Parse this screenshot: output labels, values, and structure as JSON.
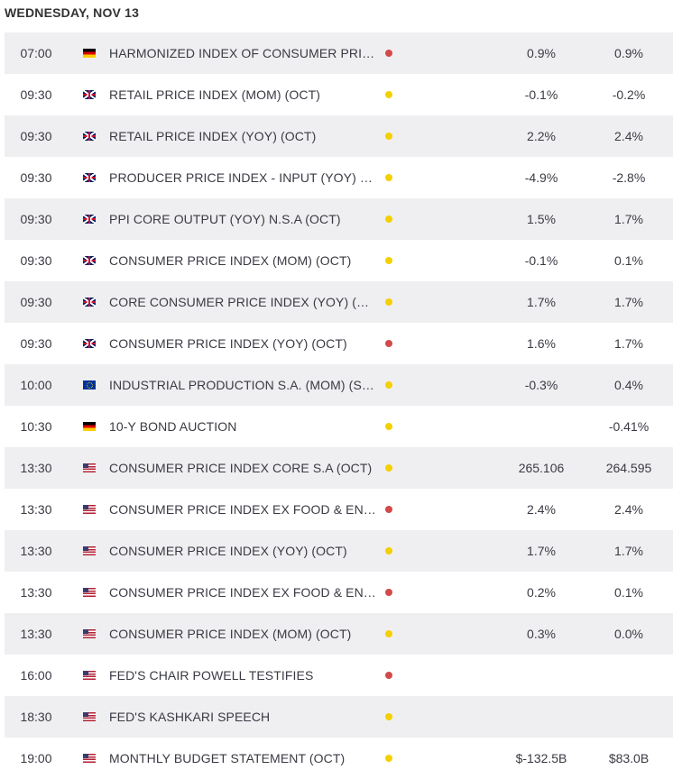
{
  "date_header": "WEDNESDAY, NOV 13",
  "importance_colors": {
    "high": "#d24a4a",
    "medium": "#f5d000"
  },
  "events": [
    {
      "time": "07:00",
      "country": "de",
      "event": "HARMONIZED INDEX OF CONSUMER PRICES (MOM) (OCT)",
      "importance": "high",
      "v1": "0.9%",
      "v2": "0.9%"
    },
    {
      "time": "09:30",
      "country": "uk",
      "event": "RETAIL PRICE INDEX (MOM) (OCT)",
      "importance": "medium",
      "v1": "-0.1%",
      "v2": "-0.2%"
    },
    {
      "time": "09:30",
      "country": "uk",
      "event": "RETAIL PRICE INDEX (YOY) (OCT)",
      "importance": "medium",
      "v1": "2.2%",
      "v2": "2.4%"
    },
    {
      "time": "09:30",
      "country": "uk",
      "event": "PRODUCER PRICE INDEX - INPUT (YOY) N.S.A (OCT)",
      "importance": "medium",
      "v1": "-4.9%",
      "v2": "-2.8%"
    },
    {
      "time": "09:30",
      "country": "uk",
      "event": "PPI CORE OUTPUT (YOY) N.S.A (OCT)",
      "importance": "medium",
      "v1": "1.5%",
      "v2": "1.7%"
    },
    {
      "time": "09:30",
      "country": "uk",
      "event": "CONSUMER PRICE INDEX (MOM) (OCT)",
      "importance": "medium",
      "v1": "-0.1%",
      "v2": "0.1%"
    },
    {
      "time": "09:30",
      "country": "uk",
      "event": "CORE CONSUMER PRICE INDEX (YOY) (OCT)",
      "importance": "medium",
      "v1": "1.7%",
      "v2": "1.7%"
    },
    {
      "time": "09:30",
      "country": "uk",
      "event": "CONSUMER PRICE INDEX (YOY) (OCT)",
      "importance": "high",
      "v1": "1.6%",
      "v2": "1.7%"
    },
    {
      "time": "10:00",
      "country": "eu",
      "event": "INDUSTRIAL PRODUCTION S.A. (MOM) (SEP)",
      "importance": "medium",
      "v1": "-0.3%",
      "v2": "0.4%"
    },
    {
      "time": "10:30",
      "country": "de",
      "event": "10-Y BOND AUCTION",
      "importance": "medium",
      "v1": "",
      "v2": "-0.41%"
    },
    {
      "time": "13:30",
      "country": "us",
      "event": "CONSUMER PRICE INDEX CORE S.A (OCT)",
      "importance": "medium",
      "v1": "265.106",
      "v2": "264.595"
    },
    {
      "time": "13:30",
      "country": "us",
      "event": "CONSUMER PRICE INDEX EX FOOD & ENERGY (YOY) (OCT)",
      "importance": "high",
      "v1": "2.4%",
      "v2": "2.4%"
    },
    {
      "time": "13:30",
      "country": "us",
      "event": "CONSUMER PRICE INDEX (YOY) (OCT)",
      "importance": "medium",
      "v1": "1.7%",
      "v2": "1.7%"
    },
    {
      "time": "13:30",
      "country": "us",
      "event": "CONSUMER PRICE INDEX EX FOOD & ENERGY (MOM) (OCT)",
      "importance": "high",
      "v1": "0.2%",
      "v2": "0.1%"
    },
    {
      "time": "13:30",
      "country": "us",
      "event": "CONSUMER PRICE INDEX (MOM) (OCT)",
      "importance": "medium",
      "v1": "0.3%",
      "v2": "0.0%"
    },
    {
      "time": "16:00",
      "country": "us",
      "event": "FED'S CHAIR POWELL TESTIFIES",
      "importance": "high",
      "v1": "",
      "v2": ""
    },
    {
      "time": "18:30",
      "country": "us",
      "event": "FED'S KASHKARI SPEECH",
      "importance": "medium",
      "v1": "",
      "v2": ""
    },
    {
      "time": "19:00",
      "country": "us",
      "event": "MONTHLY BUDGET STATEMENT (OCT)",
      "importance": "medium",
      "v1": "$-132.5B",
      "v2": "$83.0B"
    }
  ]
}
